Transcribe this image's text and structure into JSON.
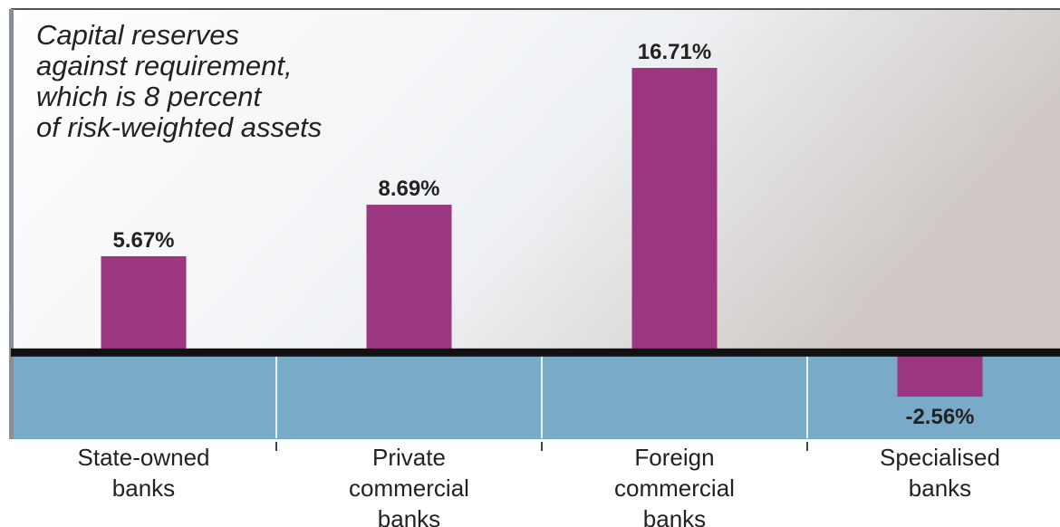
{
  "chart_data": {
    "type": "bar",
    "title": "Capital reserves\nagainst requirement,\nwhich is 8 percent\nof risk-weighted assets",
    "categories": [
      "State-owned\nbanks",
      "Private\ncommercial\nbanks",
      "Foreign\ncommercial\nbanks",
      "Specialised\nbanks"
    ],
    "values": [
      5.67,
      8.69,
      16.71,
      -2.56
    ],
    "value_labels": [
      "5.67%",
      "8.69%",
      "16.71%",
      "-2.56%"
    ],
    "color": "#9b3680",
    "ylim": [
      -5,
      20
    ]
  }
}
